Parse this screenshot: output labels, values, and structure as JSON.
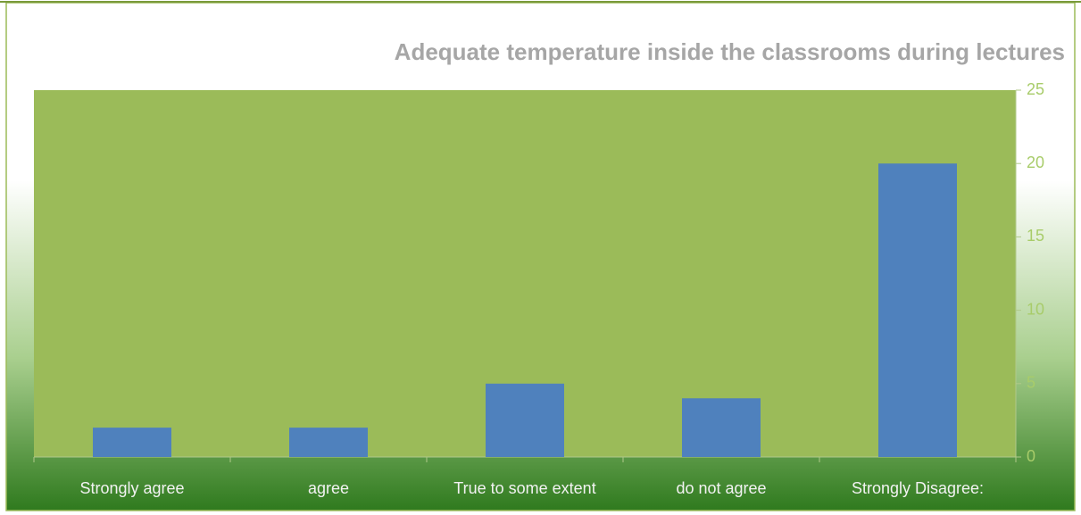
{
  "chart_data": {
    "type": "bar",
    "title": "Adequate temperature inside the classrooms during lectures",
    "categories": [
      "Strongly agree",
      "agree",
      "True to some extent",
      "do not agree",
      "Strongly Disagree:"
    ],
    "values": [
      2,
      2,
      5,
      4,
      20
    ],
    "color": "#4f81bd",
    "ylim": [
      0,
      25
    ],
    "yticks": [
      0,
      5,
      10,
      15,
      20,
      25
    ],
    "grid": false
  }
}
